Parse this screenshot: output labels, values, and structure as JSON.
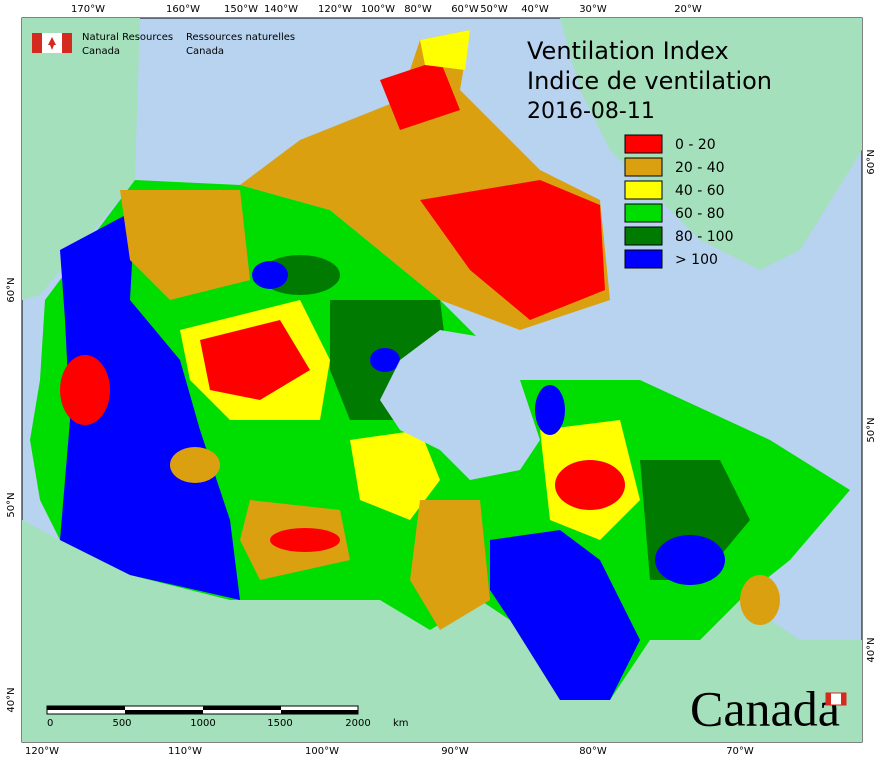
{
  "header": {
    "agency_en": [
      "Natural Resources",
      "Canada"
    ],
    "agency_fr": [
      "Ressources naturelles",
      "Canada"
    ]
  },
  "title": [
    "Ventilation Index",
    "Indice de ventilation",
    "2016-08-11"
  ],
  "legend": [
    {
      "label": "0 - 20",
      "color": "#ff0000"
    },
    {
      "label": "20 - 40",
      "color": "#daa010"
    },
    {
      "label": "40 - 60",
      "color": "#ffff00"
    },
    {
      "label": "60 - 80",
      "color": "#00dd00"
    },
    {
      "label": "80 - 100",
      "color": "#007a00"
    },
    {
      "label": "> 100",
      "color": "#0000ff"
    }
  ],
  "top_labels": [
    "170°W",
    "160°W",
    "150°W",
    "140°W",
    "120°W",
    "100°W",
    "80°W",
    "60°W",
    "50°W",
    "40°W",
    "30°W",
    "20°W"
  ],
  "bottom_labels": [
    "120°W",
    "110°W",
    "100°W",
    "90°W",
    "80°W",
    "70°W"
  ],
  "left_labels": [
    "60°N",
    "50°N",
    "40°N"
  ],
  "right_labels": [
    "60°N",
    "50°N",
    "40°N"
  ],
  "scale": {
    "ticks": [
      "0",
      "500",
      "1000",
      "1500",
      "2000"
    ],
    "unit": "km"
  },
  "wordmark": "Canada"
}
